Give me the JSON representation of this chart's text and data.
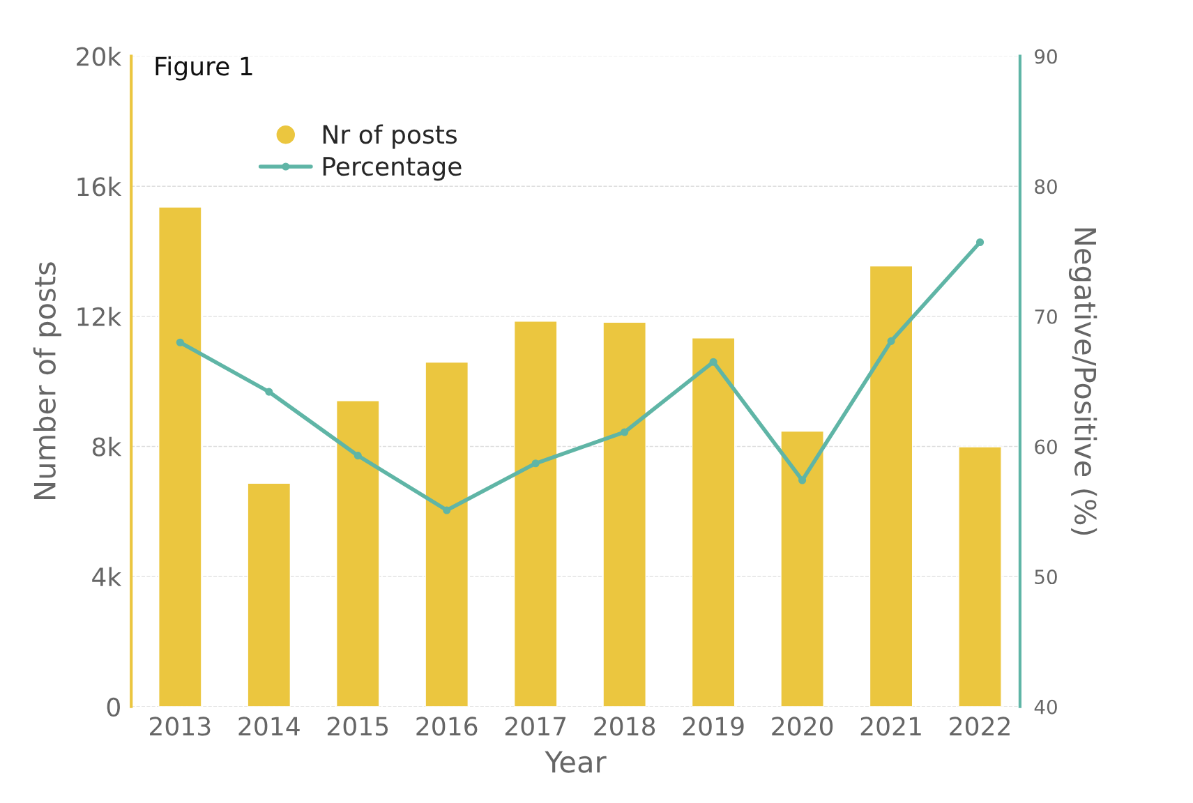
{
  "chart_data": {
    "type": "bar",
    "title": "Figure 1",
    "xlabel": "Year",
    "ylabel": "Number of posts",
    "y2label": "Negative/Positive (%)",
    "categories": [
      "2013",
      "2014",
      "2015",
      "2016",
      "2017",
      "2018",
      "2019",
      "2020",
      "2021",
      "2022"
    ],
    "series": [
      {
        "name": "Nr of posts",
        "color": "#ebc63f",
        "values": [
          15360,
          6870,
          9410,
          10590,
          11850,
          11820,
          11340,
          8470,
          13550,
          7990
        ]
      },
      {
        "name": "Percentage",
        "type": "line",
        "axis": "y2",
        "color": "#5fb5a6",
        "marker": "circle",
        "line_style": "solid",
        "values": [
          68.0,
          64.2,
          59.3,
          55.1,
          58.7,
          61.1,
          66.5,
          57.4,
          68.1,
          75.7
        ]
      }
    ],
    "ylim": [
      0,
      20000
    ],
    "yticks": [
      {
        "value": 0,
        "label": "0"
      },
      {
        "value": 4000,
        "label": "4k"
      },
      {
        "value": 8000,
        "label": "8k"
      },
      {
        "value": 12000,
        "label": "12k"
      },
      {
        "value": 16000,
        "label": "16k"
      },
      {
        "value": 20000,
        "label": "20k"
      }
    ],
    "y2lim": [
      40,
      90
    ],
    "y2ticks": [
      40,
      50,
      60,
      70,
      80,
      90
    ],
    "grid": "y",
    "legend": "top left"
  }
}
